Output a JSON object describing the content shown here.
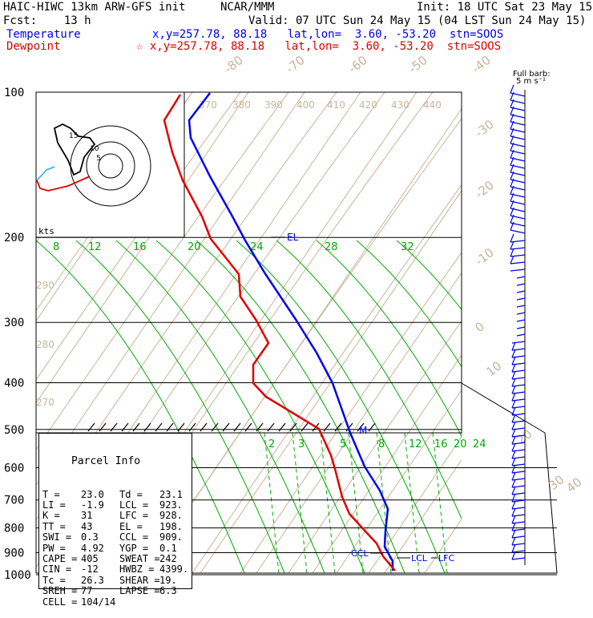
{
  "header": {
    "model": "HAIC-HIWC 13km ARW-GFS init",
    "org": "NCAR/MMM",
    "init": "Init: 18 UTC Sat 23 May 15",
    "fcst": "Fcst:    13 h",
    "valid": "Valid: 07 UTC Sun 24 May 15 (04 LST Sun 24 May 15)",
    "temp_label": "Temperature",
    "temp_info": "x,y=257.78, 88.18   lat,lon=  3.60, -53.20  stn=SOOS",
    "dew_label": "Dewpoint",
    "dew_info": "☆ x,y=257.78, 88.18   lat,lon=  3.60, -53.20  stn=SOOS"
  },
  "colors": {
    "temperature": "#0000ee",
    "dewpoint": "#e00000",
    "isotherm": "#c8b49a",
    "mixing_ratio": "#00aa00"
  },
  "barb_label": {
    "line1": "Full barb:",
    "line2": "5 m s⁻¹"
  },
  "hodograph": {
    "speed_unit": "kts",
    "ring_labels": [
      "15",
      "10",
      "5"
    ]
  },
  "chart_data": {
    "type": "line",
    "pressure_levels": [
      100,
      200,
      300,
      400,
      500,
      600,
      700,
      800,
      900,
      1000
    ],
    "isotherm_labels": [
      "-80",
      "-70",
      "-60",
      "-50",
      "-40",
      "-30",
      "-20",
      "-10",
      "0",
      "10",
      "20",
      "30",
      "40"
    ],
    "theta_labels": [
      "370",
      "380",
      "390",
      "400",
      "410",
      "420",
      "430",
      "440",
      "290",
      "280",
      "270"
    ],
    "mixing_ratio_labels_upper": [
      "8",
      "12",
      "16",
      "20",
      "24",
      "28",
      "32"
    ],
    "mixing_ratio_labels_lower": [
      "2",
      "3",
      "5",
      "8",
      "12",
      "16",
      "20",
      "24"
    ],
    "series": [
      {
        "name": "Temperature",
        "color": "#0000ee",
        "points": [
          [
            262,
            116
          ],
          [
            236,
            150
          ],
          [
            238,
            172
          ],
          [
            262,
            220
          ],
          [
            290,
            270
          ],
          [
            306,
            300
          ],
          [
            330,
            340
          ],
          [
            370,
            400
          ],
          [
            395,
            440
          ],
          [
            415,
            478
          ],
          [
            437,
            540
          ],
          [
            455,
            582
          ],
          [
            474,
            612
          ],
          [
            484,
            635
          ],
          [
            481,
            662
          ],
          [
            480,
            682
          ],
          [
            490,
            700
          ],
          [
            490,
            712
          ]
        ]
      },
      {
        "name": "Dewpoint",
        "color": "#e00000",
        "points": [
          [
            225,
            118
          ],
          [
            205,
            150
          ],
          [
            215,
            190
          ],
          [
            228,
            225
          ],
          [
            252,
            270
          ],
          [
            263,
            298
          ],
          [
            298,
            342
          ],
          [
            300,
            370
          ],
          [
            320,
            400
          ],
          [
            335,
            428
          ],
          [
            316,
            455
          ],
          [
            316,
            478
          ],
          [
            332,
            495
          ],
          [
            365,
            515
          ],
          [
            398,
            535
          ],
          [
            413,
            568
          ],
          [
            418,
            585
          ],
          [
            427,
            620
          ],
          [
            436,
            641
          ],
          [
            457,
            664
          ],
          [
            470,
            678
          ],
          [
            478,
            694
          ],
          [
            493,
            712
          ]
        ]
      }
    ],
    "annotations": {
      "el": "EL",
      "m": "M",
      "ccl": "CCL",
      "lcl": "LCL",
      "lfc": "LFC"
    }
  },
  "parcel_info": {
    "title": "Parcel Info",
    "rows": [
      {
        "k1": "T",
        "v1": "23.0",
        "k2": "Td",
        "v2": "23.1"
      },
      {
        "k1": "LI",
        "v1": "-1.9",
        "k2": "LCL",
        "v2": "923."
      },
      {
        "k1": "K",
        "v1": "31",
        "k2": "LFC",
        "v2": "928."
      },
      {
        "k1": "TT",
        "v1": "43",
        "k2": "EL",
        "v2": "198."
      },
      {
        "k1": "SWI",
        "v1": "0.3",
        "k2": "CCL",
        "v2": "909."
      },
      {
        "k1": "PW",
        "v1": "4.92",
        "k2": "YGP",
        "v2": "0.1"
      },
      {
        "k1": "CAPE",
        "v1": "405",
        "k2": "SWEAT",
        "v2": "242"
      },
      {
        "k1": "CIN",
        "v1": "-12",
        "k2": "HWBZ",
        "v2": "4399."
      },
      {
        "k1": "Tc",
        "v1": "26.3",
        "k2": "SHEAR",
        "v2": "19."
      },
      {
        "k1": "SREH",
        "v1": "77",
        "k2": "LAPSE",
        "v2": "6.3"
      },
      {
        "k1": "CELL",
        "v1": "104/14",
        "k2": "",
        "v2": ""
      }
    ]
  }
}
